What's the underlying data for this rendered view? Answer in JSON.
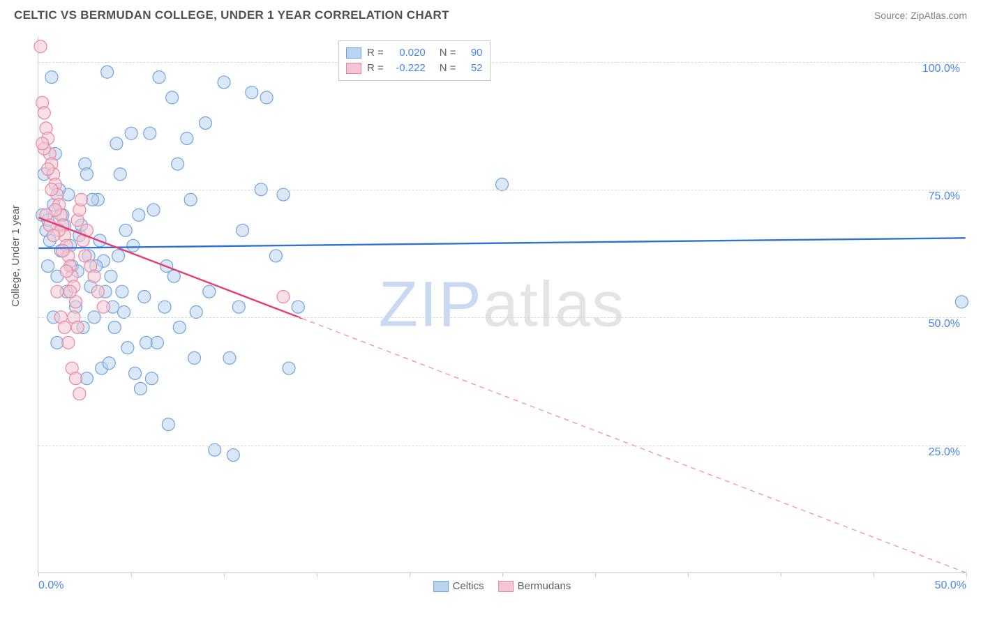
{
  "header": {
    "title": "CELTIC VS BERMUDAN COLLEGE, UNDER 1 YEAR CORRELATION CHART",
    "source": "Source: ZipAtlas.com"
  },
  "chart": {
    "type": "scatter",
    "ylabel": "College, Under 1 year",
    "ylabel_fontsize": 15,
    "xlim": [
      0,
      50
    ],
    "ylim": [
      0,
      105
    ],
    "yticks": [
      25,
      50,
      75,
      100
    ],
    "ytick_labels": [
      "25.0%",
      "50.0%",
      "75.0%",
      "100.0%"
    ],
    "xticks": [
      0,
      5,
      10,
      15,
      20,
      25,
      30,
      35,
      40,
      45,
      50
    ],
    "xtick_labels_shown": {
      "0": "0.0%",
      "50": "50.0%"
    },
    "grid_color": "#d8d8d8",
    "axis_color": "#c8c8c8",
    "background_color": "#ffffff",
    "tick_label_color": "#4a86e8",
    "marker_radius": 9,
    "marker_stroke_width": 1.2,
    "trendline_width": 2.4,
    "series": [
      {
        "name": "Celtics",
        "color_fill": "#bcd4f0",
        "color_stroke": "#6fa3dd",
        "trend_color": "#2f72d4",
        "fill_opacity": 0.55,
        "r_value": "0.020",
        "n_value": "90",
        "trend": {
          "x1": 0,
          "y1": 63.5,
          "x2": 50,
          "y2": 65.5,
          "solid_until_x": 50
        },
        "points": [
          [
            0.2,
            70
          ],
          [
            0.4,
            67
          ],
          [
            0.5,
            69
          ],
          [
            0.6,
            65
          ],
          [
            0.8,
            72
          ],
          [
            1.0,
            58
          ],
          [
            1.2,
            63
          ],
          [
            1.4,
            68
          ],
          [
            1.5,
            55
          ],
          [
            1.6,
            74
          ],
          [
            1.8,
            60
          ],
          [
            2.0,
            52
          ],
          [
            2.2,
            66
          ],
          [
            2.4,
            48
          ],
          [
            2.5,
            80
          ],
          [
            2.6,
            78
          ],
          [
            2.8,
            56
          ],
          [
            3.0,
            50
          ],
          [
            3.2,
            73
          ],
          [
            3.4,
            40
          ],
          [
            3.5,
            61
          ],
          [
            3.8,
            41
          ],
          [
            4.0,
            52
          ],
          [
            4.2,
            84
          ],
          [
            4.4,
            78
          ],
          [
            4.5,
            55
          ],
          [
            4.6,
            51
          ],
          [
            4.8,
            44
          ],
          [
            5.0,
            86
          ],
          [
            5.2,
            39
          ],
          [
            5.5,
            36
          ],
          [
            5.8,
            45
          ],
          [
            6.0,
            86
          ],
          [
            6.2,
            71
          ],
          [
            6.5,
            97
          ],
          [
            6.8,
            52
          ],
          [
            7.0,
            29
          ],
          [
            7.2,
            93
          ],
          [
            7.5,
            80
          ],
          [
            8.0,
            85
          ],
          [
            8.2,
            73
          ],
          [
            8.5,
            51
          ],
          [
            9.0,
            88
          ],
          [
            9.2,
            55
          ],
          [
            9.5,
            24
          ],
          [
            10.0,
            96
          ],
          [
            10.3,
            42
          ],
          [
            10.5,
            23
          ],
          [
            10.8,
            52
          ],
          [
            11.0,
            67
          ],
          [
            11.5,
            94
          ],
          [
            12.0,
            75
          ],
          [
            12.3,
            93
          ],
          [
            12.8,
            62
          ],
          [
            13.2,
            74
          ],
          [
            13.5,
            40
          ],
          [
            14.0,
            52
          ],
          [
            0.3,
            78
          ],
          [
            0.9,
            82
          ],
          [
            1.1,
            75
          ],
          [
            1.3,
            70
          ],
          [
            1.7,
            64
          ],
          [
            2.1,
            59
          ],
          [
            2.3,
            68
          ],
          [
            2.7,
            62
          ],
          [
            2.9,
            73
          ],
          [
            3.1,
            60
          ],
          [
            3.3,
            65
          ],
          [
            3.6,
            55
          ],
          [
            3.9,
            58
          ],
          [
            4.1,
            48
          ],
          [
            4.3,
            62
          ],
          [
            4.7,
            67
          ],
          [
            5.1,
            64
          ],
          [
            5.4,
            70
          ],
          [
            5.7,
            54
          ],
          [
            6.1,
            38
          ],
          [
            6.4,
            45
          ],
          [
            6.9,
            60
          ],
          [
            7.3,
            58
          ],
          [
            7.6,
            48
          ],
          [
            8.4,
            42
          ],
          [
            0.7,
            97
          ],
          [
            3.7,
            98
          ],
          [
            2.6,
            38
          ],
          [
            25.0,
            76
          ],
          [
            49.8,
            53
          ],
          [
            0.5,
            60
          ],
          [
            1.0,
            45
          ],
          [
            0.8,
            50
          ]
        ]
      },
      {
        "name": "Bermudans",
        "color_fill": "#f4c6d3",
        "color_stroke": "#e8859f",
        "trend_color": "#e63d6f",
        "fill_opacity": 0.55,
        "r_value": "-0.222",
        "n_value": "52",
        "trend": {
          "x1": 0,
          "y1": 69.5,
          "x2": 50,
          "y2": 0,
          "solid_until_x": 14.2
        },
        "points": [
          [
            0.1,
            103
          ],
          [
            0.2,
            92
          ],
          [
            0.3,
            90
          ],
          [
            0.4,
            87
          ],
          [
            0.5,
            85
          ],
          [
            0.6,
            82
          ],
          [
            0.7,
            80
          ],
          [
            0.8,
            78
          ],
          [
            0.9,
            76
          ],
          [
            1.0,
            74
          ],
          [
            1.1,
            72
          ],
          [
            1.2,
            70
          ],
          [
            1.3,
            68
          ],
          [
            1.4,
            66
          ],
          [
            1.5,
            64
          ],
          [
            1.6,
            62
          ],
          [
            1.7,
            60
          ],
          [
            1.8,
            58
          ],
          [
            1.9,
            56
          ],
          [
            2.0,
            53
          ],
          [
            2.1,
            69
          ],
          [
            2.2,
            71
          ],
          [
            2.3,
            73
          ],
          [
            2.4,
            65
          ],
          [
            2.5,
            62
          ],
          [
            2.6,
            67
          ],
          [
            2.8,
            60
          ],
          [
            3.0,
            58
          ],
          [
            3.2,
            55
          ],
          [
            3.5,
            52
          ],
          [
            0.3,
            83
          ],
          [
            0.5,
            79
          ],
          [
            0.7,
            75
          ],
          [
            0.9,
            71
          ],
          [
            1.1,
            67
          ],
          [
            1.3,
            63
          ],
          [
            1.5,
            59
          ],
          [
            1.7,
            55
          ],
          [
            1.9,
            50
          ],
          [
            2.1,
            48
          ],
          [
            0.4,
            70
          ],
          [
            0.6,
            68
          ],
          [
            0.8,
            66
          ],
          [
            1.0,
            55
          ],
          [
            1.2,
            50
          ],
          [
            1.4,
            48
          ],
          [
            1.6,
            45
          ],
          [
            1.8,
            40
          ],
          [
            2.0,
            38
          ],
          [
            2.2,
            35
          ],
          [
            13.2,
            54
          ],
          [
            0.2,
            84
          ]
        ]
      }
    ]
  },
  "legend_top": {
    "r_label": "R =",
    "n_label": "N =",
    "value_color": "#4a86e8"
  },
  "legend_bottom": {
    "items": [
      "Celtics",
      "Bermudans"
    ]
  },
  "watermark": {
    "part1": "ZIP",
    "part2": "atlas"
  }
}
